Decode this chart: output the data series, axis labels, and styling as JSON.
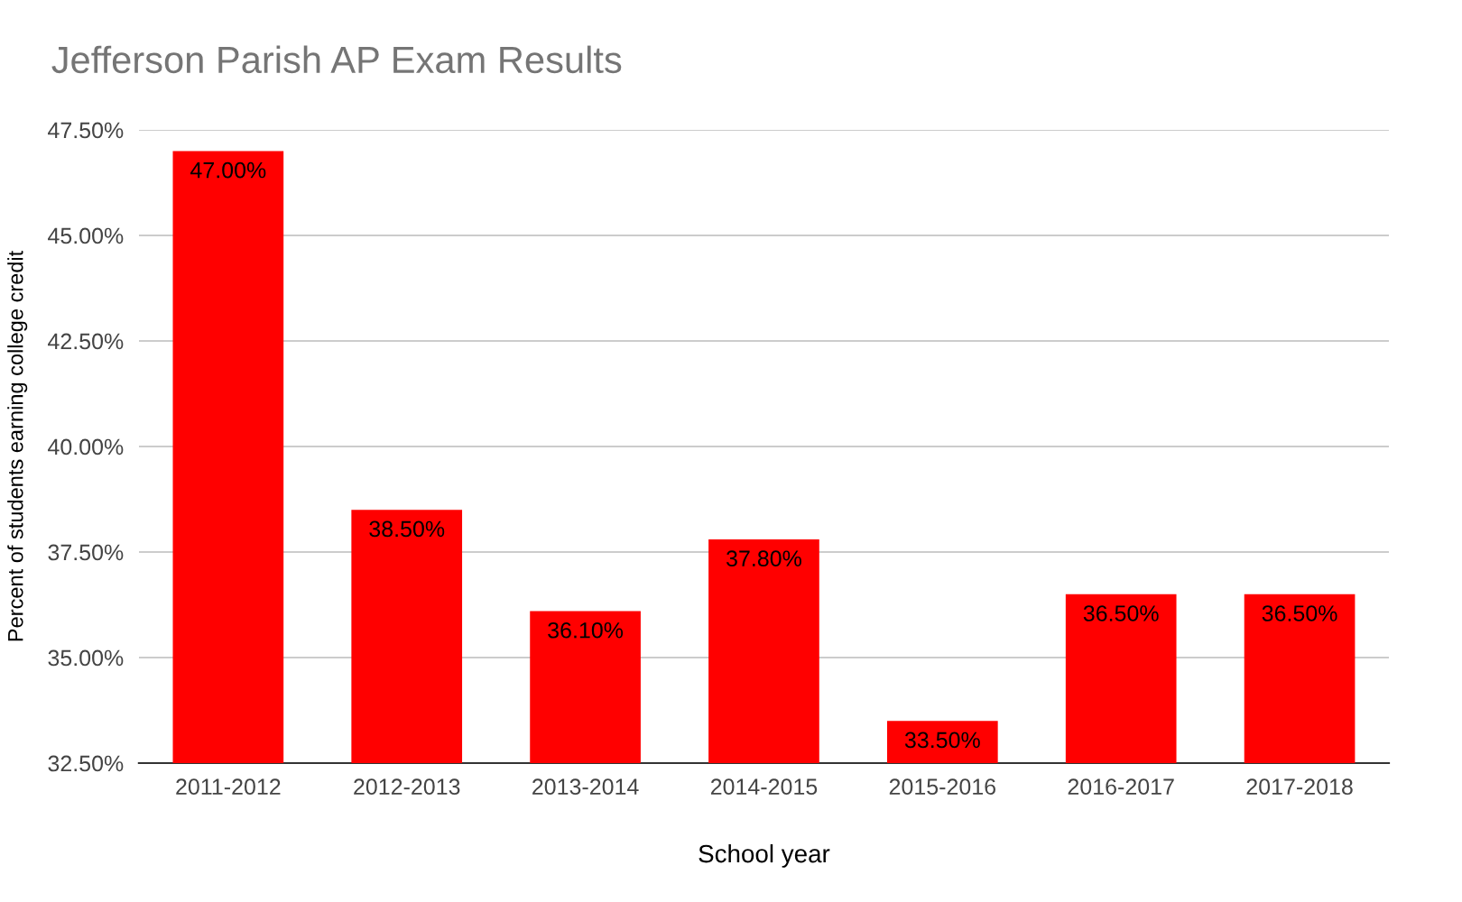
{
  "chart_data": {
    "type": "bar",
    "title": "Jefferson Parish AP Exam Results",
    "xlabel": "School year",
    "ylabel": "Percent of students earning college credit",
    "categories": [
      "2011-2012",
      "2012-2013",
      "2013-2014",
      "2014-2015",
      "2015-2016",
      "2016-2017",
      "2017-2018"
    ],
    "values": [
      47.0,
      38.5,
      36.1,
      37.8,
      33.5,
      36.5,
      36.5
    ],
    "value_labels": [
      "47.00%",
      "38.50%",
      "36.10%",
      "37.80%",
      "33.50%",
      "36.50%",
      "36.50%"
    ],
    "color": "#ff0000",
    "ylim": [
      32.5,
      47.5
    ],
    "yticks": [
      {
        "value": 32.5,
        "label": "32.50%"
      },
      {
        "value": 35,
        "label": "35.00%"
      },
      {
        "value": 37.5,
        "label": "37.50%"
      },
      {
        "value": 40,
        "label": "40.00%"
      },
      {
        "value": 42.5,
        "label": "42.50%"
      },
      {
        "value": 45,
        "label": "45.00%"
      },
      {
        "value": 47.5,
        "label": "47.50%"
      }
    ],
    "grid": "y",
    "legend": false
  }
}
